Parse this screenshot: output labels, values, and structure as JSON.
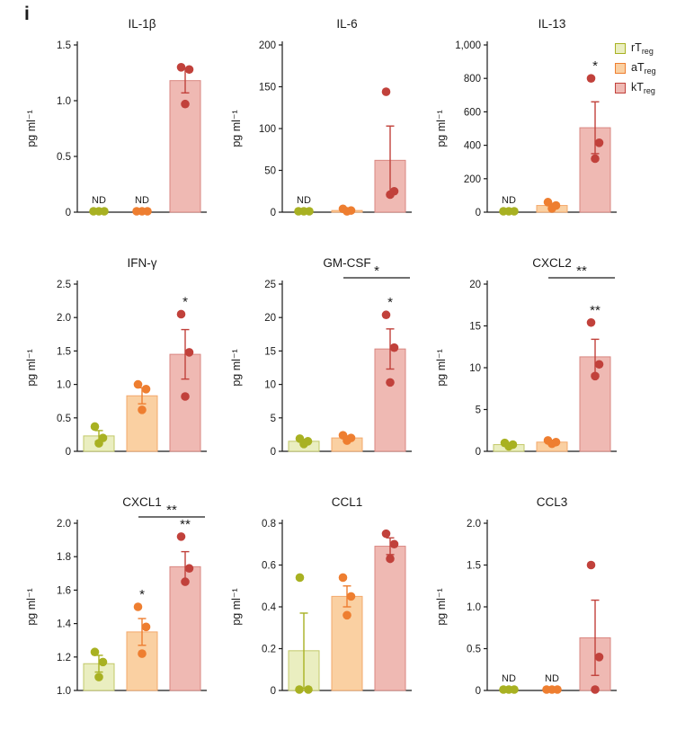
{
  "panel_label": "i",
  "legend": {
    "items": [
      {
        "prefix": "rT",
        "sub": "reg",
        "cat": "rTreg"
      },
      {
        "prefix": "aT",
        "sub": "reg",
        "cat": "aTreg"
      },
      {
        "prefix": "kT",
        "sub": "reg",
        "cat": "kTreg"
      }
    ]
  },
  "styles": {
    "axis_color": "#1a1a1a",
    "nd_label": "ND",
    "series_colors": {
      "rTreg": {
        "dot": "#a8b122",
        "bar": "#eaeec0",
        "edge": "#c2c868"
      },
      "aTreg": {
        "dot": "#ee7e30",
        "bar": "#fad0a2",
        "edge": "#f3a86b"
      },
      "kTreg": {
        "dot": "#c1413b",
        "bar": "#efb9b3",
        "edge": "#d98680"
      }
    }
  },
  "chart_data": [
    {
      "type": "bar",
      "title": "IL-1β",
      "ylabel": "pg ml⁻¹",
      "ylim": [
        0,
        1.5
      ],
      "yticks": [
        0,
        0.5,
        1.0,
        1.5
      ],
      "ytick_labels": [
        "0",
        "0.5",
        "1.0",
        "1.5"
      ],
      "categories": [
        "rTreg",
        "aTreg",
        "kTreg"
      ],
      "values": [
        0,
        0,
        1.18
      ],
      "errors": [
        0,
        0,
        0.11
      ],
      "points": [
        [
          0,
          0,
          0
        ],
        [
          0,
          0,
          0
        ],
        [
          1.3,
          1.28,
          0.97
        ]
      ],
      "nd": [
        true,
        true,
        false
      ],
      "sig_above": [
        "",
        "",
        ""
      ],
      "sig_bracket": null
    },
    {
      "type": "bar",
      "title": "IL-6",
      "ylabel": "pg ml⁻¹",
      "ylim": [
        0,
        200
      ],
      "yticks": [
        0,
        50,
        100,
        150,
        200
      ],
      "ytick_labels": [
        "0",
        "50",
        "100",
        "150",
        "200"
      ],
      "categories": [
        "rTreg",
        "aTreg",
        "kTreg"
      ],
      "values": [
        0,
        2,
        62
      ],
      "errors": [
        0,
        1,
        41
      ],
      "points": [
        [
          0,
          0,
          0
        ],
        [
          4,
          2,
          1
        ],
        [
          144,
          25,
          21
        ]
      ],
      "nd": [
        true,
        false,
        false
      ],
      "sig_above": [
        "",
        "",
        ""
      ],
      "sig_bracket": null
    },
    {
      "type": "bar",
      "title": "IL-13",
      "ylabel": "pg ml⁻¹",
      "ylim": [
        0,
        1000
      ],
      "yticks": [
        0,
        200,
        400,
        600,
        800,
        1000
      ],
      "ytick_labels": [
        "0",
        "200",
        "400",
        "600",
        "800",
        "1,000"
      ],
      "categories": [
        "rTreg",
        "aTreg",
        "kTreg"
      ],
      "values": [
        0,
        40,
        505
      ],
      "errors": [
        0,
        12,
        155
      ],
      "points": [
        [
          0,
          0,
          0
        ],
        [
          60,
          40,
          22
        ],
        [
          800,
          415,
          320
        ]
      ],
      "nd": [
        true,
        false,
        false
      ],
      "sig_above": [
        "",
        "",
        "*"
      ],
      "sig_bracket": null
    },
    {
      "type": "bar",
      "title": "IFN-γ",
      "ylabel": "pg ml⁻¹",
      "ylim": [
        0,
        2.5
      ],
      "yticks": [
        0,
        0.5,
        1.0,
        1.5,
        2.0,
        2.5
      ],
      "ytick_labels": [
        "0",
        "0.5",
        "1.0",
        "1.5",
        "2.0",
        "2.5"
      ],
      "categories": [
        "rTreg",
        "aTreg",
        "kTreg"
      ],
      "values": [
        0.23,
        0.83,
        1.45
      ],
      "errors": [
        0.08,
        0.12,
        0.37
      ],
      "points": [
        [
          0.37,
          0.2,
          0.12
        ],
        [
          1.0,
          0.93,
          0.62
        ],
        [
          2.05,
          1.48,
          0.82
        ]
      ],
      "nd": [
        false,
        false,
        false
      ],
      "sig_above": [
        "",
        "",
        "*"
      ],
      "sig_bracket": null
    },
    {
      "type": "bar",
      "title": "GM-CSF",
      "ylabel": "pg ml⁻¹",
      "ylim": [
        0,
        25
      ],
      "yticks": [
        0,
        5,
        10,
        15,
        20,
        25
      ],
      "ytick_labels": [
        "0",
        "5",
        "10",
        "15",
        "20",
        "25"
      ],
      "categories": [
        "rTreg",
        "aTreg",
        "kTreg"
      ],
      "values": [
        1.5,
        2.0,
        15.3
      ],
      "errors": [
        0.3,
        0.3,
        3.0
      ],
      "points": [
        [
          1.9,
          1.5,
          1.1
        ],
        [
          2.4,
          2.0,
          1.6
        ],
        [
          20.4,
          15.5,
          10.3
        ]
      ],
      "nd": [
        false,
        false,
        false
      ],
      "sig_above": [
        "",
        "",
        "*"
      ],
      "sig_bracket": {
        "from": 1,
        "to": 2,
        "label": "*"
      }
    },
    {
      "type": "bar",
      "title": "CXCL2",
      "ylabel": "pg ml⁻¹",
      "ylim": [
        0,
        20
      ],
      "yticks": [
        0,
        5,
        10,
        15,
        20
      ],
      "ytick_labels": [
        "0",
        "5",
        "10",
        "15",
        "20"
      ],
      "categories": [
        "rTreg",
        "aTreg",
        "kTreg"
      ],
      "values": [
        0.8,
        1.1,
        11.3
      ],
      "errors": [
        0.1,
        0.15,
        2.1
      ],
      "points": [
        [
          1.0,
          0.8,
          0.6
        ],
        [
          1.3,
          1.1,
          0.9
        ],
        [
          15.4,
          10.4,
          9.0
        ]
      ],
      "nd": [
        false,
        false,
        false
      ],
      "sig_above": [
        "",
        "",
        "**"
      ],
      "sig_bracket": {
        "from": 1,
        "to": 2,
        "label": "**"
      }
    },
    {
      "type": "bar",
      "title": "CXCL1",
      "ylabel": "pg ml⁻¹",
      "ylim": [
        1.0,
        2.0
      ],
      "yticks": [
        1.0,
        1.2,
        1.4,
        1.6,
        1.8,
        2.0
      ],
      "ytick_labels": [
        "1.0",
        "1.2",
        "1.4",
        "1.6",
        "1.8",
        "2.0"
      ],
      "categories": [
        "rTreg",
        "aTreg",
        "kTreg"
      ],
      "values": [
        1.16,
        1.35,
        1.74
      ],
      "errors": [
        0.05,
        0.08,
        0.09
      ],
      "points": [
        [
          1.23,
          1.17,
          1.08
        ],
        [
          1.5,
          1.38,
          1.22
        ],
        [
          1.92,
          1.73,
          1.65
        ]
      ],
      "nd": [
        false,
        false,
        false
      ],
      "sig_above": [
        "",
        "*",
        "**"
      ],
      "sig_bracket": {
        "from": 1,
        "to": 2,
        "label": "**"
      }
    },
    {
      "type": "bar",
      "title": "CCL1",
      "ylabel": "pg ml⁻¹",
      "ylim": [
        0,
        0.8
      ],
      "yticks": [
        0,
        0.2,
        0.4,
        0.6,
        0.8
      ],
      "ytick_labels": [
        "0",
        "0.2",
        "0.4",
        "0.6",
        "0.8"
      ],
      "categories": [
        "rTreg",
        "aTreg",
        "kTreg"
      ],
      "values": [
        0.19,
        0.45,
        0.69
      ],
      "errors": [
        0.18,
        0.05,
        0.04
      ],
      "points": [
        [
          0.54,
          0,
          0
        ],
        [
          0.54,
          0.45,
          0.36
        ],
        [
          0.75,
          0.7,
          0.63
        ]
      ],
      "nd": [
        false,
        false,
        false
      ],
      "sig_above": [
        "",
        "",
        ""
      ],
      "sig_bracket": null
    },
    {
      "type": "bar",
      "title": "CCL3",
      "ylabel": "pg ml⁻¹",
      "ylim": [
        0,
        2.0
      ],
      "yticks": [
        0,
        0.5,
        1.0,
        1.5,
        2.0
      ],
      "ytick_labels": [
        "0",
        "0.5",
        "1.0",
        "1.5",
        "2.0"
      ],
      "categories": [
        "rTreg",
        "aTreg",
        "kTreg"
      ],
      "values": [
        0,
        0,
        0.63
      ],
      "errors": [
        0,
        0,
        0.45
      ],
      "points": [
        [
          0,
          0,
          0
        ],
        [
          0,
          0,
          0
        ],
        [
          1.5,
          0.4,
          0
        ]
      ],
      "nd": [
        true,
        true,
        false
      ],
      "sig_above": [
        "",
        "",
        ""
      ],
      "sig_bracket": null
    }
  ]
}
